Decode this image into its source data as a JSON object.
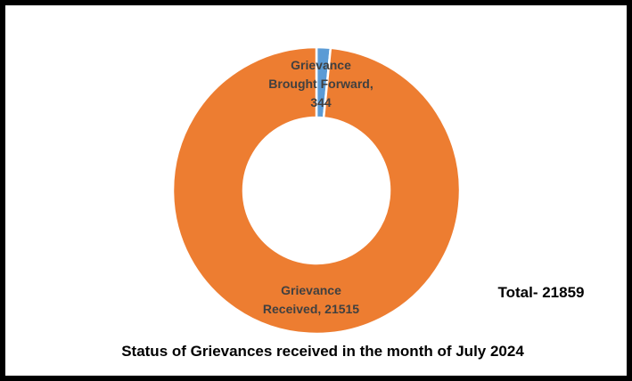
{
  "chart_data": {
    "type": "pie",
    "donut": true,
    "title": "Status of Grievances received in the month of July 2024",
    "total_label": "Total- 21859",
    "slices": [
      {
        "name": "Grievance Brought Forward",
        "value": 344,
        "color": "#5B9BD5",
        "label_lines": [
          "Grievance",
          "Brought Forward,",
          "344"
        ]
      },
      {
        "name": "Grievance Received",
        "value": 21515,
        "color": "#ED7D31",
        "label_lines": [
          "Grievance",
          "Received, 21515"
        ]
      }
    ],
    "legend": "none"
  }
}
